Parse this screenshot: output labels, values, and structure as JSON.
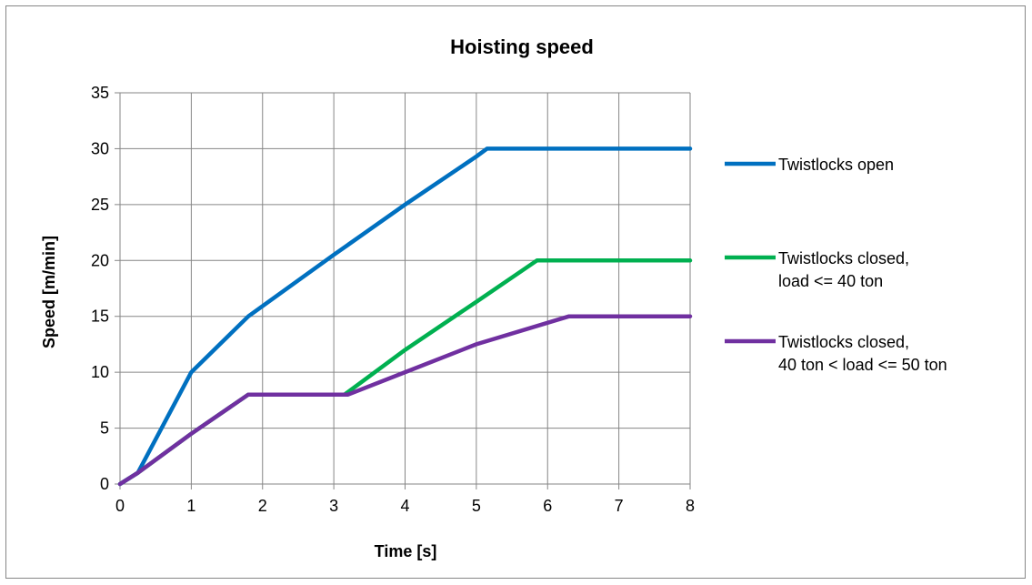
{
  "chart_data": {
    "type": "line",
    "title": "Hoisting speed",
    "xlabel": "Time [s]",
    "ylabel": "Speed [m/min]",
    "xlim": [
      0,
      8
    ],
    "ylim": [
      0,
      35
    ],
    "xticks": [
      0,
      1,
      2,
      3,
      4,
      5,
      6,
      7,
      8
    ],
    "yticks": [
      0,
      5,
      10,
      15,
      20,
      25,
      30,
      35
    ],
    "grid": true,
    "legend_position": "right",
    "series": [
      {
        "name": "Twistlocks open",
        "color": "#0070C0",
        "points": [
          [
            0,
            0
          ],
          [
            0.25,
            1
          ],
          [
            1,
            10
          ],
          [
            1.8,
            15
          ],
          [
            3,
            20.5
          ],
          [
            4,
            25
          ],
          [
            5,
            29.3
          ],
          [
            5.15,
            30
          ],
          [
            8,
            30
          ]
        ]
      },
      {
        "name": "Twistlocks closed, load <= 40 ton",
        "legend_lines": [
          "Twistlocks closed,",
          "load <= 40 ton"
        ],
        "color": "#00B050",
        "points": [
          [
            0,
            0
          ],
          [
            0.25,
            1
          ],
          [
            1,
            4.5
          ],
          [
            1.8,
            8
          ],
          [
            3.15,
            8
          ],
          [
            4,
            12
          ],
          [
            5,
            16.3
          ],
          [
            5.85,
            20
          ],
          [
            8,
            20
          ]
        ]
      },
      {
        "name": "Twistlocks closed, 40 ton < load <= 50 ton",
        "legend_lines": [
          "Twistlocks closed,",
          "40 ton < load <= 50 ton"
        ],
        "color": "#7030A0",
        "points": [
          [
            0,
            0
          ],
          [
            0.25,
            1
          ],
          [
            1,
            4.5
          ],
          [
            1.8,
            8
          ],
          [
            3.2,
            8
          ],
          [
            4,
            10
          ],
          [
            5,
            12.5
          ],
          [
            6.3,
            15
          ],
          [
            8,
            15
          ]
        ]
      }
    ]
  }
}
